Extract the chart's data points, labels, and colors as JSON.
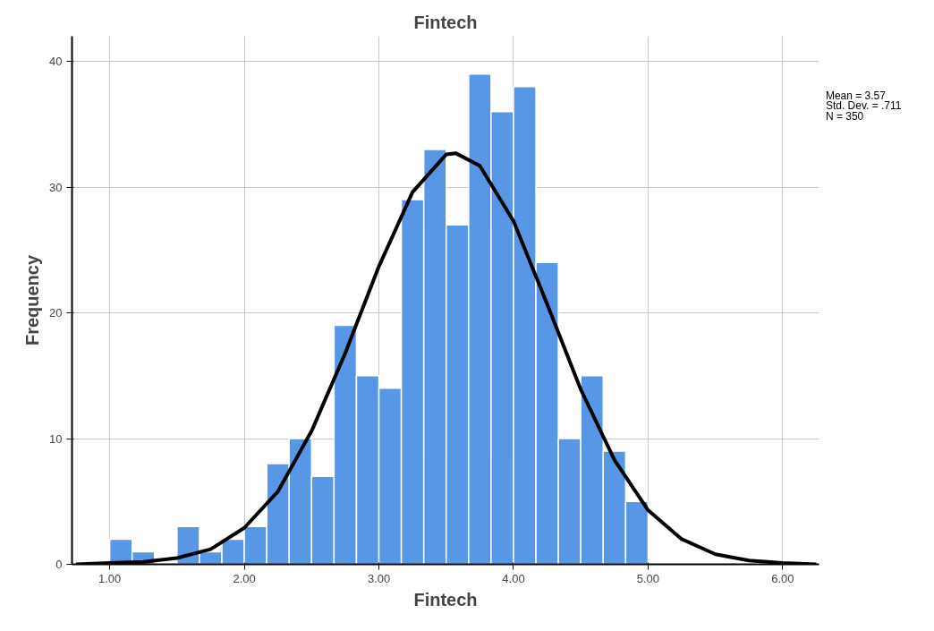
{
  "chart_data": {
    "type": "histogram",
    "title": "Fintech",
    "xlabel": "Fintech",
    "ylabel": "Frequency",
    "bins": [
      1,
      1.1667,
      1.3333,
      1.5,
      1.6667,
      1.8333,
      2,
      2.1667,
      2.3333,
      2.5,
      2.6667,
      2.8333,
      3,
      3.1667,
      3.3333,
      3.5,
      3.6667,
      3.8333,
      4,
      4.1667,
      4.3333,
      4.5,
      4.6667,
      4.8333,
      5
    ],
    "values": [
      2,
      1,
      0,
      3,
      1,
      2,
      3,
      8,
      10,
      7,
      19,
      15,
      14,
      29,
      33,
      27,
      39,
      36,
      38,
      24,
      10,
      15,
      9,
      5
    ],
    "color": "#5896e6",
    "series": [
      {
        "type": "line",
        "color": "#000000",
        "x": [
          0.75,
          1,
          1.25,
          1.5,
          1.75,
          2,
          2.25,
          2.5,
          2.75,
          3,
          3.25,
          3.5,
          3.57,
          3.75,
          4,
          4.25,
          4.5,
          4.75,
          5,
          5.25,
          5.5,
          5.75,
          6,
          6.25
        ],
        "values": [
          0,
          0.1,
          0.2,
          0.5,
          1.2,
          2.9,
          5.8,
          10.6,
          16.8,
          23.7,
          29.6,
          32.6,
          32.7,
          31.7,
          27.3,
          20.7,
          13.9,
          8.3,
          4.3,
          2,
          0.8,
          0.3,
          0.1,
          0
        ]
      }
    ],
    "xlim": [
      0.72,
      6.27
    ],
    "ylim": [
      0,
      42
    ],
    "xticks": [
      {
        "value": 1,
        "label": "1.00"
      },
      {
        "value": 2,
        "label": "2.00"
      },
      {
        "value": 3,
        "label": "3.00"
      },
      {
        "value": 4,
        "label": "4.00"
      },
      {
        "value": 5,
        "label": "5.00"
      },
      {
        "value": 6,
        "label": "6.00"
      }
    ],
    "yticks": [
      0,
      10,
      20,
      30,
      40
    ],
    "grid": true,
    "annotations": [
      "Mean = 3.57",
      "Std. Dev. = .711",
      "N = 350"
    ]
  }
}
